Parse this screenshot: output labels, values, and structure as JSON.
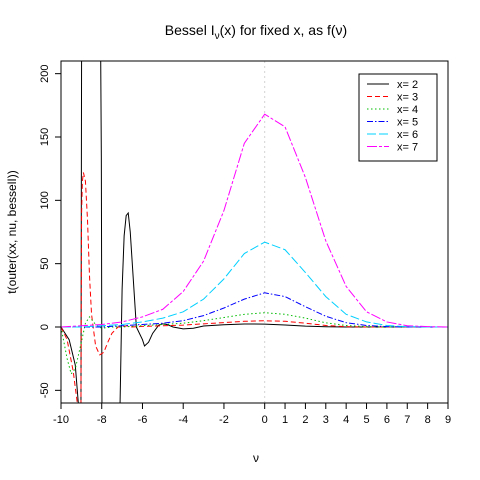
{
  "chart_data": {
    "type": "line",
    "title": {
      "prefix": "Bessel I",
      "subscript": "ν",
      "suffix": "(x) for fixed x,  as f(ν)"
    },
    "xlabel": "ν",
    "ylabel": "t(outer(xx, nu, besselI))",
    "xlim": [
      -10,
      9
    ],
    "ylim": [
      -60,
      210
    ],
    "x_ticks": [
      -10,
      -8,
      -6,
      -4,
      -2,
      0,
      1,
      2,
      3,
      4,
      5,
      6,
      7,
      8,
      9
    ],
    "y_ticks": [
      -50,
      0,
      50,
      100,
      150,
      200
    ],
    "reference_line": {
      "x": 0,
      "style": "dotted",
      "color": "#d3d3d3"
    },
    "legend_position": "top-right",
    "series": [
      {
        "name": "x= 2",
        "x_value": 2,
        "color": "#000000",
        "dash": "",
        "x": [
          -10,
          -9.6,
          -9.3,
          -9.15,
          -9.1,
          -9.05,
          -9.02,
          -8.99,
          -8.97,
          -8.7,
          -8.4,
          -8.15,
          -8.1,
          -8.05,
          -8.02,
          -7.99,
          -7.97,
          -7.7,
          -7.3,
          -7.1,
          -7.0,
          -6.9,
          -6.8,
          -6.7,
          -6.6,
          -6.5,
          -6.3,
          -6.0,
          -5.9,
          -5.7,
          -5.5,
          -5.2,
          -5.0,
          -4.8,
          -4.5,
          -4.0,
          -3.5,
          -3.0,
          -2.0,
          -1.0,
          0,
          1,
          2,
          3,
          4,
          5,
          6,
          7,
          8,
          9
        ],
        "y": [
          0,
          -10,
          -30,
          -60,
          -60,
          -60,
          -60,
          210,
          210,
          210,
          210,
          210,
          210,
          210,
          135,
          -60,
          -60,
          -60,
          -60,
          -60,
          30,
          72,
          88,
          90,
          75,
          50,
          0,
          -10,
          -15,
          -12,
          -5,
          1.5,
          2.5,
          2,
          0,
          -1.5,
          -1,
          0.8,
          1.8,
          2.4,
          2.3,
          1.6,
          0.7,
          0.2,
          0.05,
          0,
          0,
          0,
          0,
          0
        ]
      },
      {
        "name": "x= 3",
        "x_value": 3,
        "color": "#ff0000",
        "dash": "5,3",
        "x": [
          -10,
          -9.7,
          -9.4,
          -9.2,
          -9.1,
          -9.05,
          -9.02,
          -8.99,
          -8.95,
          -8.9,
          -8.8,
          -8.7,
          -8.6,
          -8.5,
          -8.3,
          -8.1,
          -7.9,
          -7.7,
          -7.5,
          -7.2,
          -7.0,
          -6.8,
          -6.5,
          -6.0,
          -5.0,
          -4.0,
          -3.0,
          -2.0,
          -1.0,
          0,
          1,
          2,
          3,
          4,
          5,
          6,
          7,
          8,
          9
        ],
        "y": [
          0,
          -10,
          -35,
          -60,
          -60,
          -60,
          -60,
          90,
          115,
          122,
          115,
          85,
          40,
          10,
          -15,
          -22,
          -20,
          -12,
          -5,
          0,
          0,
          1,
          0,
          0.5,
          1,
          1.5,
          2.5,
          3.5,
          4.5,
          4.9,
          4.5,
          3,
          1.2,
          0.3,
          0.05,
          0,
          0,
          0,
          0
        ]
      },
      {
        "name": "x= 4",
        "x_value": 4,
        "color": "#00bb00",
        "dash": "1.5,2.5",
        "x": [
          -10,
          -9.7,
          -9.5,
          -9.3,
          -9.0,
          -8.8,
          -8.6,
          -8.5,
          -8.3,
          -8.0,
          -7.5,
          -7.0,
          -6.0,
          -5.0,
          -4.0,
          -3.0,
          -2.0,
          -1.0,
          0,
          1,
          2,
          3,
          4,
          5,
          6,
          7,
          8,
          9
        ],
        "y": [
          0,
          -25,
          -37,
          -33,
          -12,
          3,
          8,
          6,
          2,
          -1,
          0,
          0,
          1,
          2,
          3,
          5,
          7.5,
          10,
          11.3,
          10,
          7,
          3.3,
          1.2,
          0.3,
          0.05,
          0,
          0,
          0
        ]
      },
      {
        "name": "x= 5",
        "x_value": 5,
        "color": "#0000ff",
        "dash": "6,2,1.5,2",
        "x": [
          -10,
          -9.0,
          -8.0,
          -7.0,
          -6.0,
          -5.0,
          -4.0,
          -3.0,
          -2.0,
          -1.0,
          0,
          1,
          2,
          3,
          4,
          5,
          6,
          7,
          8,
          9
        ],
        "y": [
          0,
          0,
          0,
          1,
          2,
          3,
          5,
          9,
          15,
          22,
          27,
          24,
          16,
          8.5,
          3.4,
          1.2,
          0.3,
          0.05,
          0,
          0
        ]
      },
      {
        "name": "x= 6",
        "x_value": 6,
        "color": "#00d0ff",
        "dash": "9,3",
        "x": [
          -10,
          -9,
          -8,
          -7,
          -6,
          -5,
          -4,
          -3,
          -2,
          -1,
          0,
          1,
          2,
          3,
          4,
          5,
          6,
          7,
          8,
          9
        ],
        "y": [
          0,
          0,
          1,
          2,
          4,
          7,
          12,
          22,
          38,
          58,
          67,
          61,
          43,
          24,
          10,
          4,
          1.2,
          0.3,
          0.05,
          0
        ]
      },
      {
        "name": "x= 7",
        "x_value": 7,
        "color": "#ff00ff",
        "dash": "10,2,3,2",
        "x": [
          -10,
          -9,
          -8,
          -7,
          -6,
          -5,
          -4,
          -3,
          -2,
          -1,
          0,
          1,
          2,
          3,
          4,
          5,
          6,
          7,
          8,
          9
        ],
        "y": [
          0,
          1,
          2,
          4,
          8,
          14,
          28,
          52,
          92,
          145,
          168,
          158,
          118,
          68,
          32,
          12,
          4,
          1,
          0.3,
          0
        ]
      }
    ]
  }
}
